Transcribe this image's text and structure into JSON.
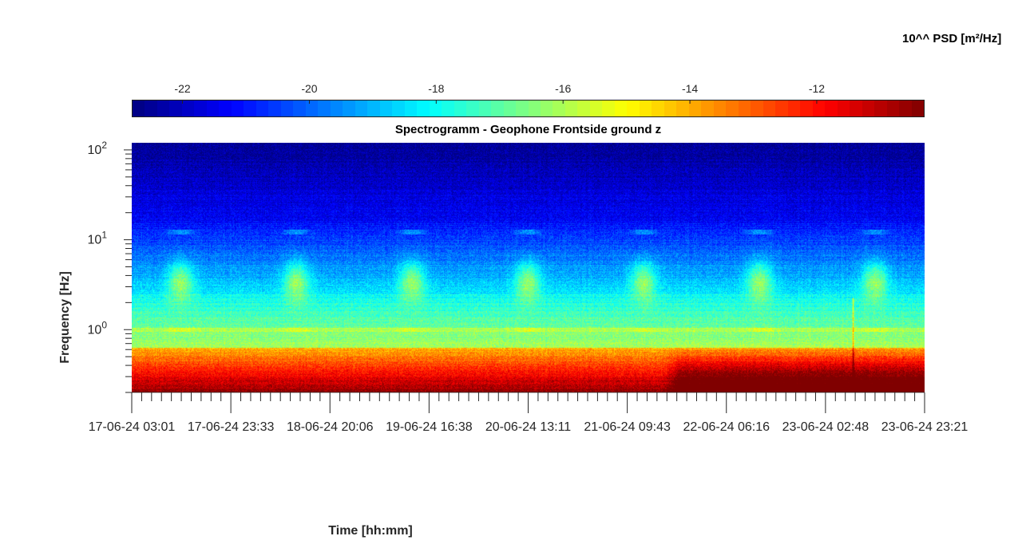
{
  "chart_data": {
    "type": "heatmap",
    "title": "Spectrogramm - Geophone Frontside ground z",
    "xlabel": "Time [hh:mm]",
    "ylabel": "Frequency [Hz]",
    "colorbar_label": "10^^ PSD [m²/Hz]",
    "colormap": "jet",
    "color_range": [
      -22.8,
      -10.3
    ],
    "colorbar_ticks": [
      -22,
      -20,
      -18,
      -16,
      -14,
      -12
    ],
    "y_scale": "log",
    "y_range_hz": [
      0.2,
      120
    ],
    "y_ticks": [
      {
        "value": 1,
        "base": "10",
        "exp": "0"
      },
      {
        "value": 10,
        "base": "10",
        "exp": "1"
      },
      {
        "value": 100,
        "base": "10",
        "exp": "2"
      }
    ],
    "x_ticks": [
      "17-06-24  03:01",
      "17-06-24  23:33",
      "18-06-24  20:06",
      "19-06-24  16:38",
      "20-06-24  13:11",
      "21-06-24  09:43",
      "22-06-24  06:16",
      "23-06-24  02:48",
      "23-06-24  23:21"
    ],
    "x_range": [
      "17-06-24  03:01",
      "23-06-24  23:21"
    ],
    "grid": false
  }
}
